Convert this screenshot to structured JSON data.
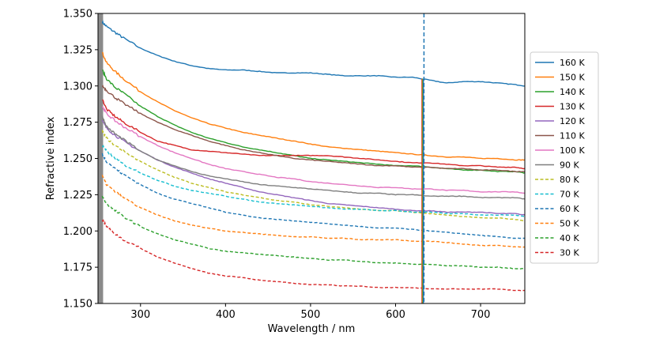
{
  "chart_data": {
    "type": "line",
    "title": "",
    "xlabel": "Wavelength / nm",
    "ylabel": "Refractive index",
    "xlim": [
      250,
      752
    ],
    "ylim": [
      1.15,
      1.35
    ],
    "xticks": [
      300,
      400,
      500,
      600,
      700
    ],
    "yticks": [
      1.15,
      1.175,
      1.2,
      1.225,
      1.25,
      1.275,
      1.3,
      1.325,
      1.35
    ],
    "ytick_labels": [
      "1.150",
      "1.175",
      "1.200",
      "1.225",
      "1.250",
      "1.275",
      "1.300",
      "1.325",
      "1.350"
    ],
    "grid": false,
    "legend_position": "right, outside plot",
    "spike_wavelength": 632,
    "shaded_region": [
      250,
      256
    ],
    "x": [
      255,
      260,
      270,
      280,
      300,
      320,
      340,
      360,
      380,
      400,
      420,
      440,
      460,
      480,
      500,
      520,
      540,
      560,
      580,
      600,
      620,
      640,
      660,
      680,
      700,
      720,
      740,
      752
    ],
    "series": [
      {
        "name": "160 K",
        "color": "#1f77b4",
        "dash": false,
        "values": [
          1.344,
          1.341,
          1.337,
          1.333,
          1.326,
          1.321,
          1.317,
          1.314,
          1.312,
          1.311,
          1.311,
          1.31,
          1.309,
          1.309,
          1.309,
          1.308,
          1.307,
          1.307,
          1.307,
          1.306,
          1.306,
          1.304,
          1.302,
          1.303,
          1.303,
          1.302,
          1.301,
          1.3
        ]
      },
      {
        "name": "150  K",
        "color": "#ff7f0e",
        "dash": false,
        "values": [
          1.323,
          1.316,
          1.31,
          1.305,
          1.296,
          1.289,
          1.283,
          1.278,
          1.274,
          1.271,
          1.268,
          1.266,
          1.264,
          1.262,
          1.26,
          1.258,
          1.257,
          1.256,
          1.255,
          1.254,
          1.253,
          1.252,
          1.251,
          1.251,
          1.25,
          1.25,
          1.249,
          1.249
        ]
      },
      {
        "name": "140 K",
        "color": "#2ca02c",
        "dash": false,
        "values": [
          1.311,
          1.305,
          1.299,
          1.295,
          1.286,
          1.279,
          1.273,
          1.268,
          1.264,
          1.261,
          1.258,
          1.256,
          1.254,
          1.252,
          1.25,
          1.249,
          1.248,
          1.247,
          1.246,
          1.245,
          1.245,
          1.244,
          1.243,
          1.242,
          1.242,
          1.241,
          1.241,
          1.24
        ]
      },
      {
        "name": "130 K",
        "color": "#d62728",
        "dash": false,
        "values": [
          1.291,
          1.284,
          1.279,
          1.275,
          1.268,
          1.262,
          1.259,
          1.256,
          1.255,
          1.254,
          1.253,
          1.252,
          1.252,
          1.252,
          1.252,
          1.252,
          1.251,
          1.25,
          1.249,
          1.248,
          1.247,
          1.247,
          1.246,
          1.245,
          1.245,
          1.244,
          1.244,
          1.243
        ]
      },
      {
        "name": "120 K",
        "color": "#9467bd",
        "dash": false,
        "values": [
          1.276,
          1.271,
          1.266,
          1.262,
          1.255,
          1.249,
          1.244,
          1.24,
          1.236,
          1.233,
          1.23,
          1.227,
          1.225,
          1.223,
          1.221,
          1.219,
          1.218,
          1.217,
          1.216,
          1.215,
          1.214,
          1.214,
          1.213,
          1.213,
          1.213,
          1.212,
          1.212,
          1.211
        ]
      },
      {
        "name": "110 K",
        "color": "#8c564b",
        "dash": false,
        "values": [
          1.3,
          1.297,
          1.292,
          1.288,
          1.281,
          1.275,
          1.27,
          1.266,
          1.262,
          1.259,
          1.256,
          1.254,
          1.252,
          1.25,
          1.249,
          1.248,
          1.247,
          1.246,
          1.245,
          1.245,
          1.244,
          1.244,
          1.243,
          1.243,
          1.242,
          1.242,
          1.241,
          1.241
        ]
      },
      {
        "name": "100 K",
        "color": "#e377c2",
        "dash": false,
        "values": [
          1.286,
          1.281,
          1.276,
          1.272,
          1.265,
          1.259,
          1.254,
          1.25,
          1.246,
          1.243,
          1.241,
          1.239,
          1.237,
          1.236,
          1.234,
          1.233,
          1.232,
          1.231,
          1.23,
          1.23,
          1.229,
          1.229,
          1.228,
          1.228,
          1.227,
          1.227,
          1.227,
          1.226
        ]
      },
      {
        "name": "90 K",
        "color": "#7f7f7f",
        "dash": false,
        "values": [
          1.279,
          1.272,
          1.267,
          1.263,
          1.255,
          1.249,
          1.245,
          1.241,
          1.238,
          1.236,
          1.234,
          1.232,
          1.231,
          1.23,
          1.229,
          1.228,
          1.227,
          1.226,
          1.226,
          1.225,
          1.225,
          1.224,
          1.224,
          1.224,
          1.223,
          1.223,
          1.223,
          1.222
        ]
      },
      {
        "name": "80 K",
        "color": "#bcbd22",
        "dash": true,
        "values": [
          1.269,
          1.264,
          1.259,
          1.255,
          1.248,
          1.242,
          1.237,
          1.233,
          1.23,
          1.227,
          1.225,
          1.223,
          1.221,
          1.22,
          1.218,
          1.217,
          1.216,
          1.215,
          1.214,
          1.214,
          1.213,
          1.212,
          1.211,
          1.21,
          1.209,
          1.209,
          1.208,
          1.207
        ]
      },
      {
        "name": "70 K",
        "color": "#17becf",
        "dash": true,
        "values": [
          1.259,
          1.255,
          1.25,
          1.246,
          1.24,
          1.235,
          1.231,
          1.228,
          1.226,
          1.224,
          1.222,
          1.22,
          1.219,
          1.218,
          1.217,
          1.216,
          1.215,
          1.215,
          1.214,
          1.214,
          1.213,
          1.213,
          1.212,
          1.212,
          1.211,
          1.211,
          1.211,
          1.21
        ]
      },
      {
        "name": "60 K",
        "color": "#1f77b4",
        "dash": true,
        "values": [
          1.253,
          1.248,
          1.243,
          1.239,
          1.232,
          1.226,
          1.222,
          1.219,
          1.216,
          1.213,
          1.211,
          1.209,
          1.208,
          1.207,
          1.206,
          1.205,
          1.204,
          1.203,
          1.202,
          1.202,
          1.201,
          1.2,
          1.199,
          1.198,
          1.197,
          1.196,
          1.195,
          1.195
        ]
      },
      {
        "name": "50 K",
        "color": "#ff7f0e",
        "dash": true,
        "values": [
          1.238,
          1.232,
          1.227,
          1.223,
          1.216,
          1.211,
          1.207,
          1.204,
          1.202,
          1.2,
          1.199,
          1.198,
          1.197,
          1.196,
          1.196,
          1.195,
          1.195,
          1.194,
          1.194,
          1.194,
          1.193,
          1.193,
          1.192,
          1.191,
          1.19,
          1.19,
          1.189,
          1.189
        ]
      },
      {
        "name": "40 K",
        "color": "#2ca02c",
        "dash": true,
        "values": [
          1.224,
          1.219,
          1.214,
          1.21,
          1.203,
          1.198,
          1.194,
          1.191,
          1.188,
          1.186,
          1.185,
          1.184,
          1.183,
          1.182,
          1.181,
          1.18,
          1.18,
          1.179,
          1.178,
          1.178,
          1.177,
          1.177,
          1.176,
          1.176,
          1.175,
          1.175,
          1.174,
          1.174
        ]
      },
      {
        "name": "30  K",
        "color": "#d62728",
        "dash": true,
        "values": [
          1.208,
          1.203,
          1.198,
          1.194,
          1.188,
          1.182,
          1.178,
          1.174,
          1.171,
          1.169,
          1.168,
          1.166,
          1.165,
          1.164,
          1.163,
          1.163,
          1.162,
          1.162,
          1.161,
          1.161,
          1.161,
          1.16,
          1.16,
          1.16,
          1.16,
          1.16,
          1.159,
          1.159
        ]
      }
    ]
  }
}
